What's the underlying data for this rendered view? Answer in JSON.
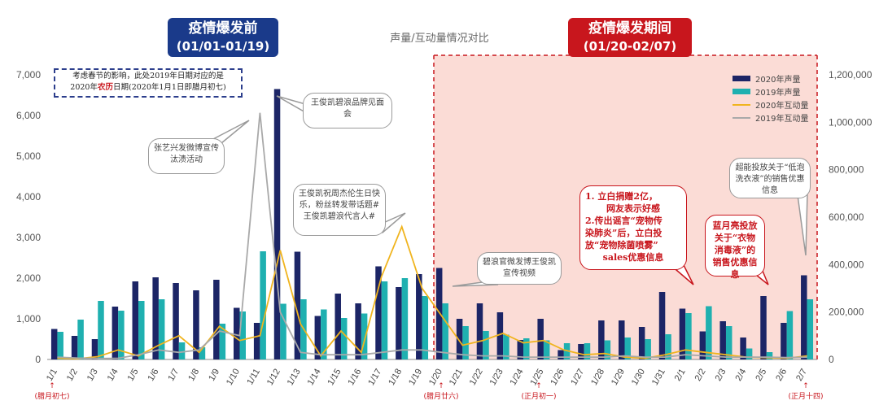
{
  "badges": {
    "before": {
      "line1": "疫情爆发前",
      "line2": "(01/01-01/19)",
      "color": "#1a3a8a"
    },
    "during": {
      "line1": "疫情爆发期间",
      "line2": "(01/20-02/07)",
      "color": "#c8161d"
    }
  },
  "note": {
    "part1": "考虑春节的影响，此处2019年日期对应的是",
    "part2a": "2020年",
    "part2b": "农历",
    "part2c": "日期(2020年1月1日即腊月初七)"
  },
  "callouts": {
    "c1": "王俊凯碧浪品牌见面会",
    "c2": "张艺兴发微博宣传汰渍活动",
    "c3": "王俊凯祝周杰伦生日快乐，粉丝转发带话题#王俊凯碧浪代言人#",
    "c4": "碧浪官微发博王俊凯宣传视频",
    "c5_l1": "1.   立白捐赠2亿，",
    "c5_l2": "网友表示好感",
    "c5_l3": "2.传出谣言“宠物传",
    "c5_l4": "染肺炎”后，立白投",
    "c5_l5": "放“宠物除菌喷雾”",
    "c5_l6": "sales优惠信息",
    "c6": "蓝月亮投放关于“衣物消毒液”的销售优惠信息",
    "c7": "超能投放关于“低泡洗衣液”的销售优惠信息"
  },
  "lunar_labels": [
    {
      "text": "(腊月初七)",
      "date": "1/1"
    },
    {
      "text": "(腊月廿六)",
      "date": "1/20"
    },
    {
      "text": "(正月初一)",
      "date": "1/25"
    },
    {
      "text": "(正月十四)",
      "date": "2/7"
    }
  ],
  "chart_data": {
    "type": "bar",
    "title": "声量/互动量情况对比",
    "categories": [
      "1/1",
      "1/2",
      "1/3",
      "1/4",
      "1/5",
      "1/6",
      "1/7",
      "1/8",
      "1/9",
      "1/10",
      "1/11",
      "1/12",
      "1/13",
      "1/14",
      "1/15",
      "1/16",
      "1/17",
      "1/18",
      "1/19",
      "1/20",
      "1/21",
      "1/22",
      "1/23",
      "1/24",
      "1/25",
      "1/26",
      "1/27",
      "1/28",
      "1/29",
      "1/30",
      "1/31",
      "2/1",
      "2/2",
      "2/3",
      "2/4",
      "2/5",
      "2/6",
      "2/7"
    ],
    "y_left": {
      "min": 0,
      "max": 7000,
      "ticks": [
        "0",
        "1,000",
        "2,000",
        "3,000",
        "4,000",
        "5,000",
        "6,000",
        "7,000"
      ]
    },
    "y_right": {
      "min": 0,
      "max": 1200000,
      "ticks": [
        "0",
        "200,000",
        "400,000",
        "600,000",
        "800,000",
        "1,000,000",
        "1,200,000"
      ]
    },
    "series": [
      {
        "name": "2020年声量",
        "kind": "bar",
        "axis": "left",
        "color": "#1c2566",
        "values": [
          750,
          580,
          500,
          1300,
          1920,
          2020,
          1880,
          1700,
          1960,
          1270,
          900,
          6650,
          2650,
          1070,
          1620,
          1380,
          2290,
          1780,
          2100,
          2250,
          1000,
          1380,
          1160,
          480,
          1000,
          230,
          380,
          960,
          960,
          800,
          1660,
          1250,
          690,
          940,
          540,
          1560,
          900,
          2070
        ]
      },
      {
        "name": "2019年声量",
        "kind": "bar",
        "axis": "left",
        "color": "#1fb0b0",
        "values": [
          680,
          980,
          1440,
          1200,
          1440,
          1480,
          420,
          300,
          880,
          1180,
          2660,
          1370,
          1480,
          1230,
          1020,
          1130,
          1920,
          2000,
          1560,
          1380,
          820,
          700,
          610,
          520,
          470,
          400,
          400,
          470,
          540,
          500,
          620,
          1140,
          1310,
          820,
          270,
          180,
          1190,
          1480
        ]
      },
      {
        "name": "2020年互动量",
        "kind": "line",
        "axis": "right",
        "color": "#f0b41e",
        "values": [
          5000,
          3000,
          12000,
          40000,
          15000,
          60000,
          100000,
          30000,
          140000,
          80000,
          100000,
          460000,
          150000,
          15000,
          120000,
          30000,
          350000,
          560000,
          300000,
          180000,
          60000,
          80000,
          110000,
          70000,
          80000,
          40000,
          20000,
          25000,
          10000,
          5000,
          20000,
          40000,
          30000,
          20000,
          10000,
          8000,
          5000,
          15000
        ]
      },
      {
        "name": "2019年互动量",
        "kind": "line",
        "axis": "right",
        "color": "#a9a9a9",
        "values": [
          10000,
          6000,
          4000,
          5000,
          20000,
          40000,
          30000,
          40000,
          120000,
          100000,
          1040000,
          200000,
          30000,
          20000,
          20000,
          20000,
          30000,
          40000,
          40000,
          30000,
          20000,
          15000,
          15000,
          10000,
          10000,
          10000,
          10000,
          10000,
          15000,
          10000,
          10000,
          20000,
          15000,
          10000,
          10000,
          10000,
          8000,
          10000
        ]
      }
    ],
    "shaded_region": {
      "from": "1/20",
      "to": "2/7",
      "color": "#fbdcd6"
    }
  }
}
